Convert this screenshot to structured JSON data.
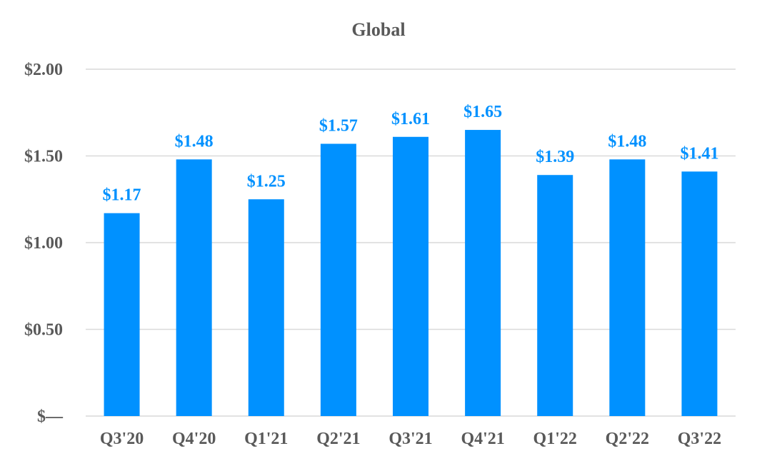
{
  "chart_data": {
    "type": "bar",
    "title": "Global",
    "categories": [
      "Q3'20",
      "Q4'20",
      "Q1'21",
      "Q2'21",
      "Q3'21",
      "Q4'21",
      "Q1'22",
      "Q2'22",
      "Q3'22"
    ],
    "values": [
      1.17,
      1.48,
      1.25,
      1.57,
      1.61,
      1.65,
      1.39,
      1.48,
      1.41
    ],
    "data_labels": [
      "$1.17",
      "$1.48",
      "$1.25",
      "$1.57",
      "$1.61",
      "$1.65",
      "$1.39",
      "$1.48",
      "$1.41"
    ],
    "yticks": [
      {
        "value": 0,
        "label": "$—"
      },
      {
        "value": 0.5,
        "label": "$0.50"
      },
      {
        "value": 1.0,
        "label": "$1.00"
      },
      {
        "value": 1.5,
        "label": "$1.50"
      },
      {
        "value": 2.0,
        "label": "$2.00"
      }
    ],
    "ylim": [
      0,
      2.0
    ],
    "xlabel": "",
    "ylabel": "",
    "grid": true,
    "legend": "none",
    "colors": {
      "bar": "#0091ff",
      "label": "#0091ff",
      "tick": "#595959",
      "grid": "#d9d9d9"
    }
  }
}
